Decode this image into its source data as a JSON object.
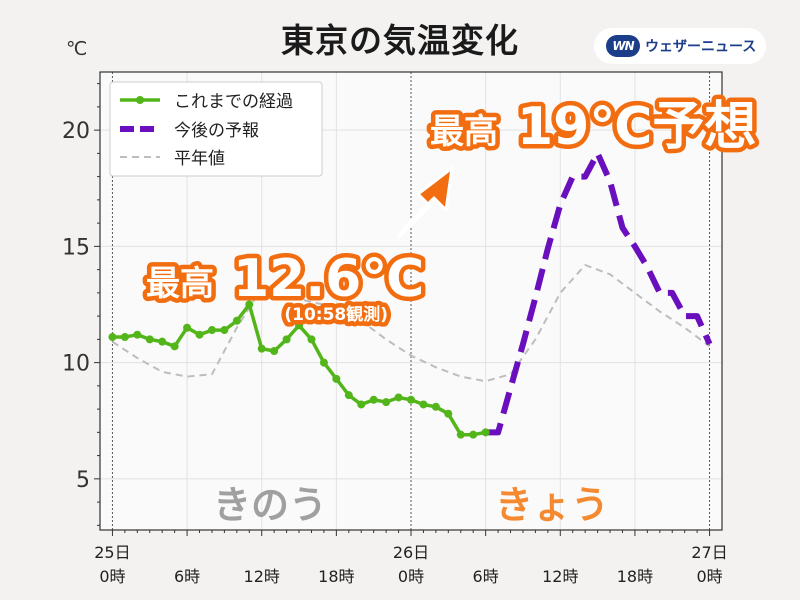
{
  "title": "東京の気温変化",
  "brand": {
    "logo": "WN",
    "name": "ウェザーニュース"
  },
  "unit": "℃",
  "annotations": {
    "past_max_label": "最高",
    "past_max_value": "12.6℃",
    "past_max_note": "(10:58観測)",
    "fc_max_label": "最高",
    "fc_max_value": "19℃予想",
    "yesterday": "きのう",
    "today": "きょう"
  },
  "colors": {
    "observed": "#52b51a",
    "forecast": "#6a0fbd",
    "normal": "#bdbdbd",
    "accent": "#f26d0f",
    "yesterday": "#a0a0a0",
    "today": "#f4892f"
  },
  "chart_data": {
    "type": "line",
    "xlabel": "",
    "ylabel": "℃",
    "ylim": [
      2.8,
      22.5
    ],
    "yticks": [
      5,
      10,
      15,
      20
    ],
    "xlim": [
      -1,
      49
    ],
    "xticks": [
      {
        "x": 0,
        "labels": [
          "25日",
          "0時"
        ]
      },
      {
        "x": 6,
        "labels": [
          "6時"
        ]
      },
      {
        "x": 12,
        "labels": [
          "12時"
        ]
      },
      {
        "x": 18,
        "labels": [
          "18時"
        ]
      },
      {
        "x": 24,
        "labels": [
          "26日",
          "0時"
        ]
      },
      {
        "x": 30,
        "labels": [
          "6時"
        ]
      },
      {
        "x": 36,
        "labels": [
          "12時"
        ]
      },
      {
        "x": 42,
        "labels": [
          "18時"
        ]
      },
      {
        "x": 48,
        "labels": [
          "27日",
          "0時"
        ]
      }
    ],
    "day_dividers": [
      0,
      24,
      48
    ],
    "legend": {
      "placement": "top-left"
    },
    "series": [
      {
        "name": "これまでの経過",
        "style": "solid-markers",
        "x": [
          0,
          1,
          2,
          3,
          4,
          5,
          6,
          7,
          8,
          9,
          10,
          11,
          12,
          13,
          14,
          15,
          16,
          17,
          18,
          19,
          20,
          21,
          22,
          23,
          24,
          25,
          26,
          27,
          28,
          29,
          30
        ],
        "y": [
          11.1,
          11.1,
          11.2,
          11.0,
          10.9,
          10.7,
          11.5,
          11.2,
          11.4,
          11.4,
          11.8,
          12.5,
          10.6,
          10.5,
          11.0,
          11.6,
          11.0,
          10.0,
          9.3,
          8.6,
          8.2,
          8.4,
          8.3,
          8.5,
          8.4,
          8.2,
          8.1,
          7.8,
          6.9,
          6.9,
          7.0
        ]
      },
      {
        "name": "今後の予報",
        "style": "dashed-thick",
        "x": [
          30,
          31,
          32,
          33,
          34,
          35,
          36,
          37,
          38,
          39,
          40,
          41,
          42,
          43,
          44,
          45,
          46,
          47,
          48
        ],
        "y": [
          7.0,
          7.0,
          8.9,
          10.8,
          12.8,
          14.9,
          16.8,
          18.0,
          18.0,
          19.0,
          17.8,
          15.8,
          15.0,
          14.1,
          13.0,
          13.0,
          12.0,
          12.0,
          10.8
        ]
      },
      {
        "name": "平年値",
        "style": "dashed-thin",
        "x": [
          0,
          2,
          4,
          6,
          8,
          10,
          12,
          14,
          16,
          18,
          20,
          22,
          24,
          26,
          28,
          30,
          32,
          34,
          36,
          38,
          40,
          42,
          44,
          46,
          48
        ],
        "y": [
          10.9,
          10.2,
          9.6,
          9.4,
          9.5,
          11.5,
          13.2,
          12.9,
          12.6,
          12.4,
          11.8,
          11.0,
          10.3,
          9.8,
          9.4,
          9.2,
          9.5,
          11.0,
          13.0,
          14.2,
          13.8,
          13.0,
          12.2,
          11.5,
          10.7
        ]
      }
    ]
  }
}
